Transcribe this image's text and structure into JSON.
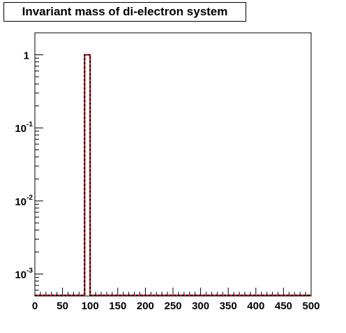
{
  "chart_data": {
    "type": "bar",
    "title": "Invariant mass of di-electron system",
    "xlabel": "",
    "ylabel": "",
    "xlim": [
      0,
      500
    ],
    "ylim": [
      0.0005,
      2
    ],
    "ylog": true,
    "grid": false,
    "x_ticks": [
      0,
      50,
      100,
      150,
      200,
      250,
      300,
      350,
      400,
      450,
      500
    ],
    "x_tick_labels": [
      "0",
      "50",
      "100",
      "150",
      "200",
      "250",
      "300",
      "350",
      "400",
      "450",
      "500"
    ],
    "y_ticks": [
      {
        "value": 1,
        "base": "1",
        "exp": ""
      },
      {
        "value": 0.1,
        "base": "10",
        "exp": "-1"
      },
      {
        "value": 0.01,
        "base": "10",
        "exp": "-2"
      },
      {
        "value": 0.001,
        "base": "10",
        "exp": "-3"
      }
    ],
    "bins": [
      {
        "x_low": 90,
        "x_high": 100,
        "value": 1
      }
    ],
    "colors": {
      "histogram_line": "#000000",
      "histogram_overlay": "#cc0000",
      "axes": "#000000"
    }
  }
}
